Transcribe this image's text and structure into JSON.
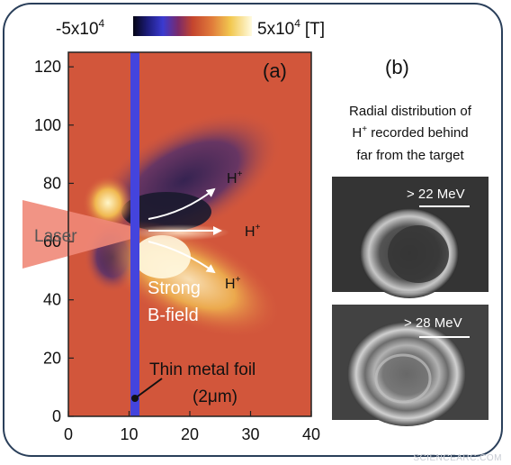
{
  "colorbar": {
    "min_label": "-5x10",
    "min_exp": "4",
    "max_label": "5x10",
    "max_exp": "4",
    "unit": "[T]"
  },
  "panel_a": {
    "label": "(a)",
    "laser_label": "Laser",
    "ion_label_top": "H",
    "ion_label_mid": "H",
    "ion_label_bot": "H",
    "ion_charge": "+",
    "field_label_line1": "Strong",
    "field_label_line2": "B-field",
    "foil_label_line1": "Thin metal foil",
    "foil_label_line2": "(2μm)"
  },
  "chart_data": {
    "type": "heatmap",
    "xlim": [
      0,
      40
    ],
    "ylim": [
      0,
      125
    ],
    "x_ticks": [
      "0",
      "10",
      "20",
      "30",
      "40"
    ],
    "y_ticks": [
      "0",
      "20",
      "40",
      "60",
      "80",
      "100",
      "120"
    ],
    "foil_x": 11,
    "laser_y": 62
  },
  "panel_b": {
    "label": "(b)",
    "caption_line1": "Radial distribution of",
    "caption_line2_pre": "H",
    "caption_line2_sup": "+",
    "caption_line2_post": " recorded  behind",
    "caption_line3": "far from the target",
    "image1_label": "> 22 MeV",
    "image2_label": "> 28 MeV"
  },
  "colors": {
    "background_field": "#d65a3e",
    "foil": "#4444dd",
    "frame": "#2a3f5a",
    "laser": "#f08878"
  },
  "watermark": "SCIENCEARC.COM"
}
